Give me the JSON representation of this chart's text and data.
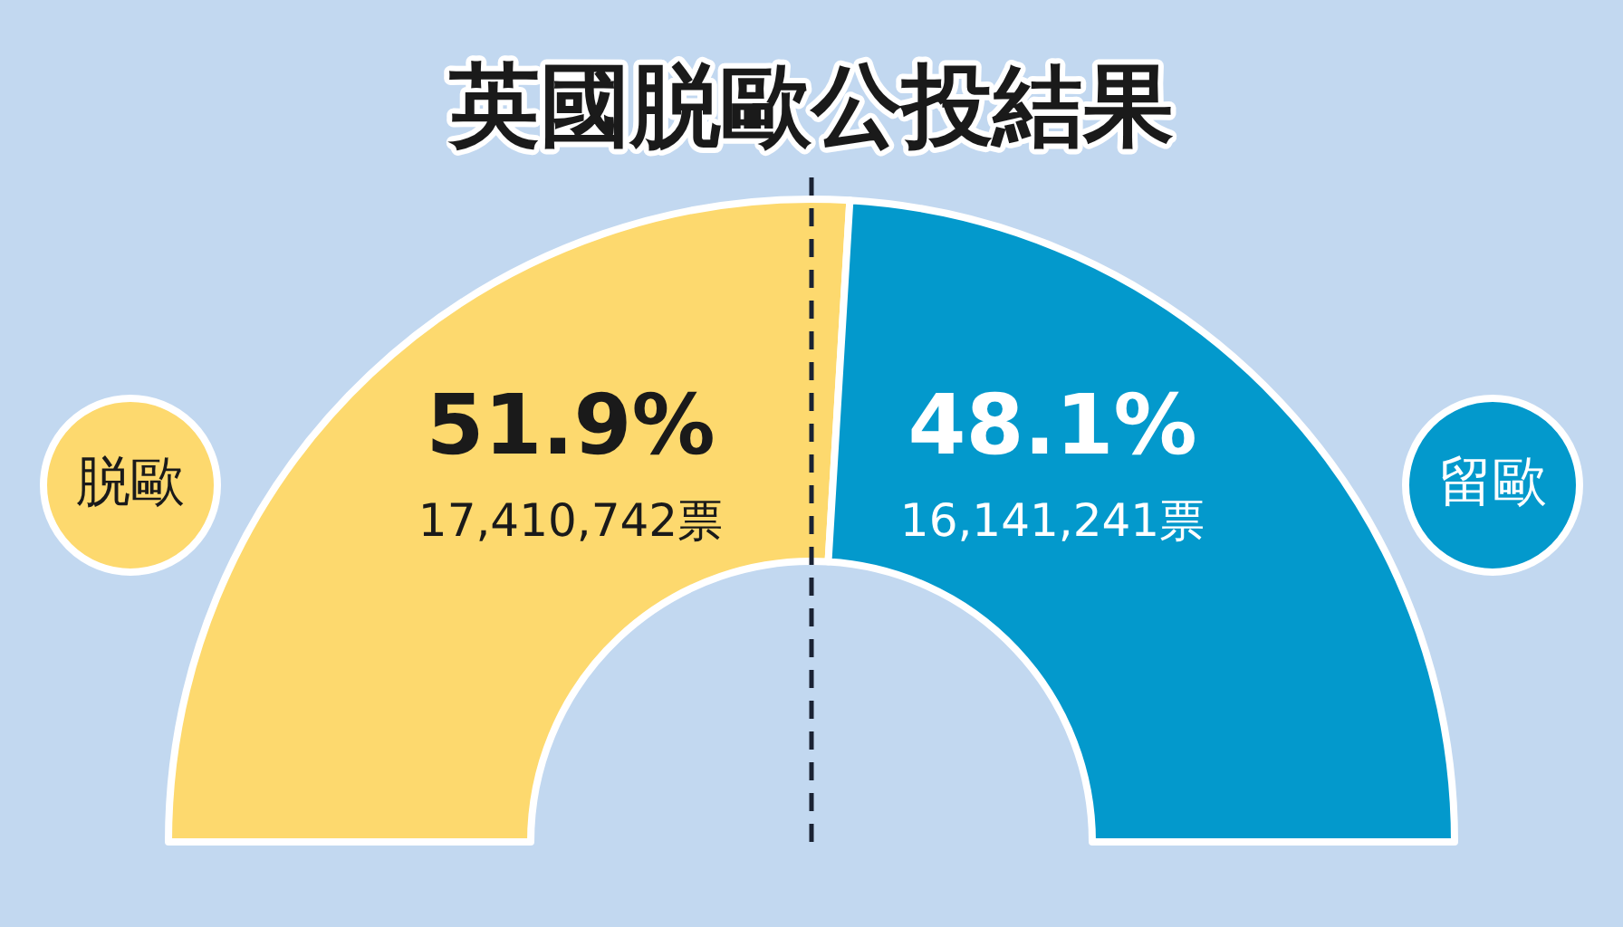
{
  "chart_data": {
    "type": "donut",
    "title": "英國脱歐公投結果",
    "categories": [
      "脱歐",
      "留歐"
    ],
    "values": [
      51.9,
      48.1
    ],
    "colors": [
      "#fdd96e",
      "#0399cc"
    ],
    "value_labels": [
      "51.9%",
      "48.1%"
    ],
    "annotations": [
      "17,410,742票",
      "16,141,241票"
    ],
    "legend": false
  }
}
